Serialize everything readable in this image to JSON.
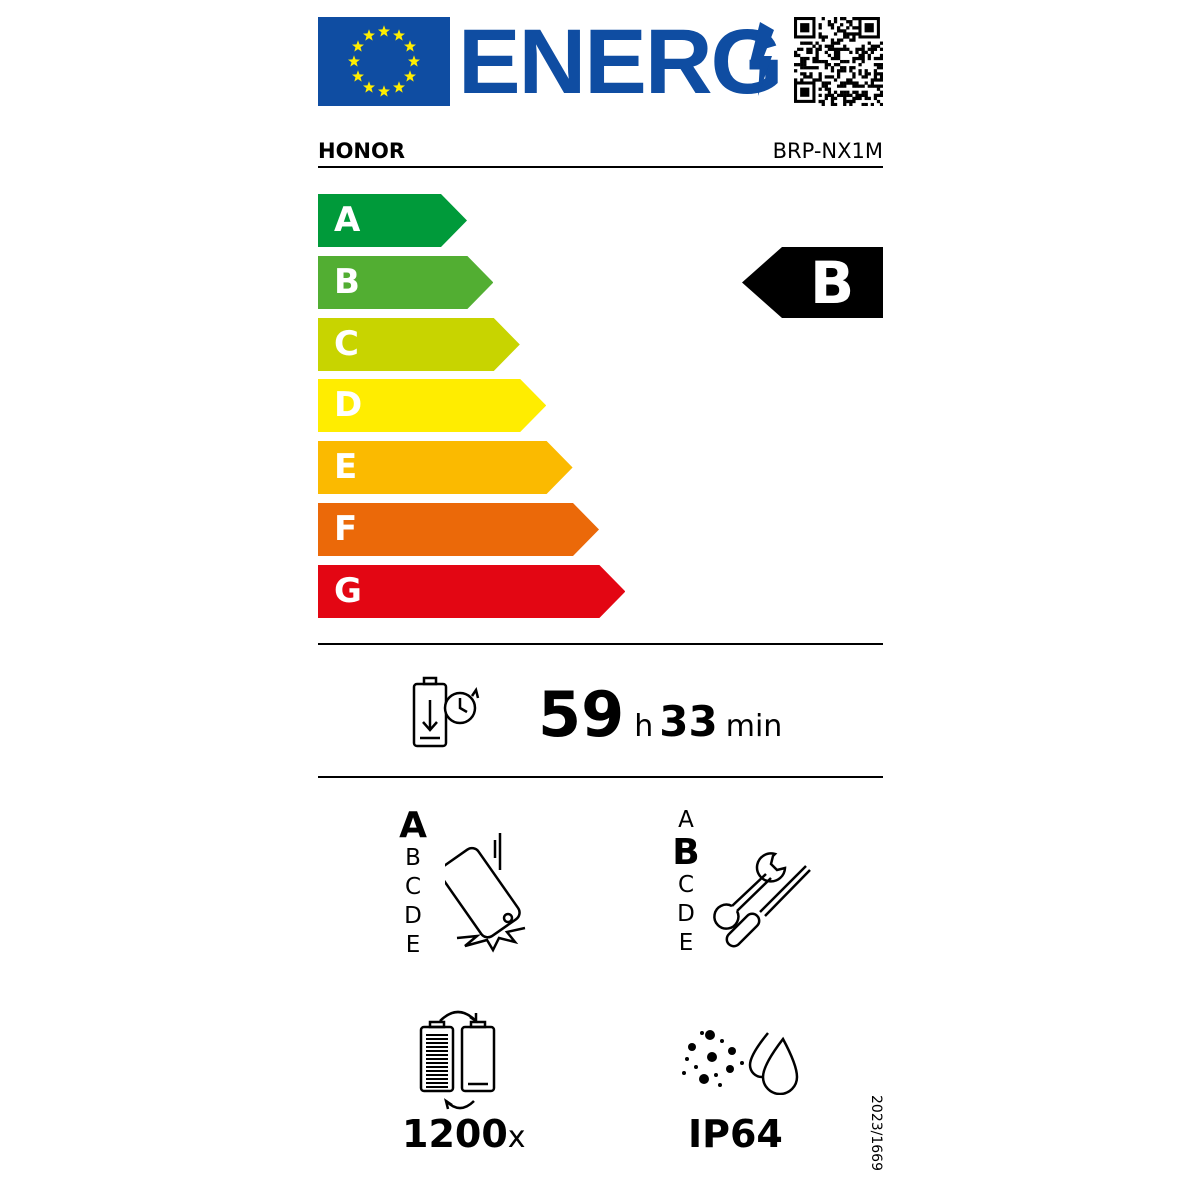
{
  "header": {
    "logo_text": "ENERG",
    "flag_colors": {
      "blue": "#0f4da2",
      "stars": "#ffed00"
    }
  },
  "supplier": {
    "brand": "HONOR",
    "model": "BRP-NX1M"
  },
  "energy_scale": {
    "classes": [
      {
        "letter": "A",
        "color": "#009a3a"
      },
      {
        "letter": "B",
        "color": "#52ae32"
      },
      {
        "letter": "C",
        "color": "#c8d400"
      },
      {
        "letter": "D",
        "color": "#ffed00"
      },
      {
        "letter": "E",
        "color": "#fbba00"
      },
      {
        "letter": "F",
        "color": "#eb6909"
      },
      {
        "letter": "G",
        "color": "#e30613"
      }
    ],
    "rating": "B"
  },
  "battery_endurance": {
    "icon": "battery-clock-icon",
    "hours": "59",
    "h_unit": "h",
    "minutes": "33",
    "min_unit": "min"
  },
  "drop_resistance": {
    "icon": "phone-drop-icon",
    "scale": [
      "A",
      "B",
      "C",
      "D",
      "E"
    ],
    "selected": "A"
  },
  "repairability": {
    "icon": "wrench-screwdriver-icon",
    "scale": [
      "A",
      "B",
      "C",
      "D",
      "E"
    ],
    "selected": "B"
  },
  "battery_cycles": {
    "icon": "battery-cycle-icon",
    "value": "1200",
    "unit": "x"
  },
  "ingress_protection": {
    "icon": "dust-water-icon",
    "value": "IP64"
  },
  "regulation": "2023/1669"
}
